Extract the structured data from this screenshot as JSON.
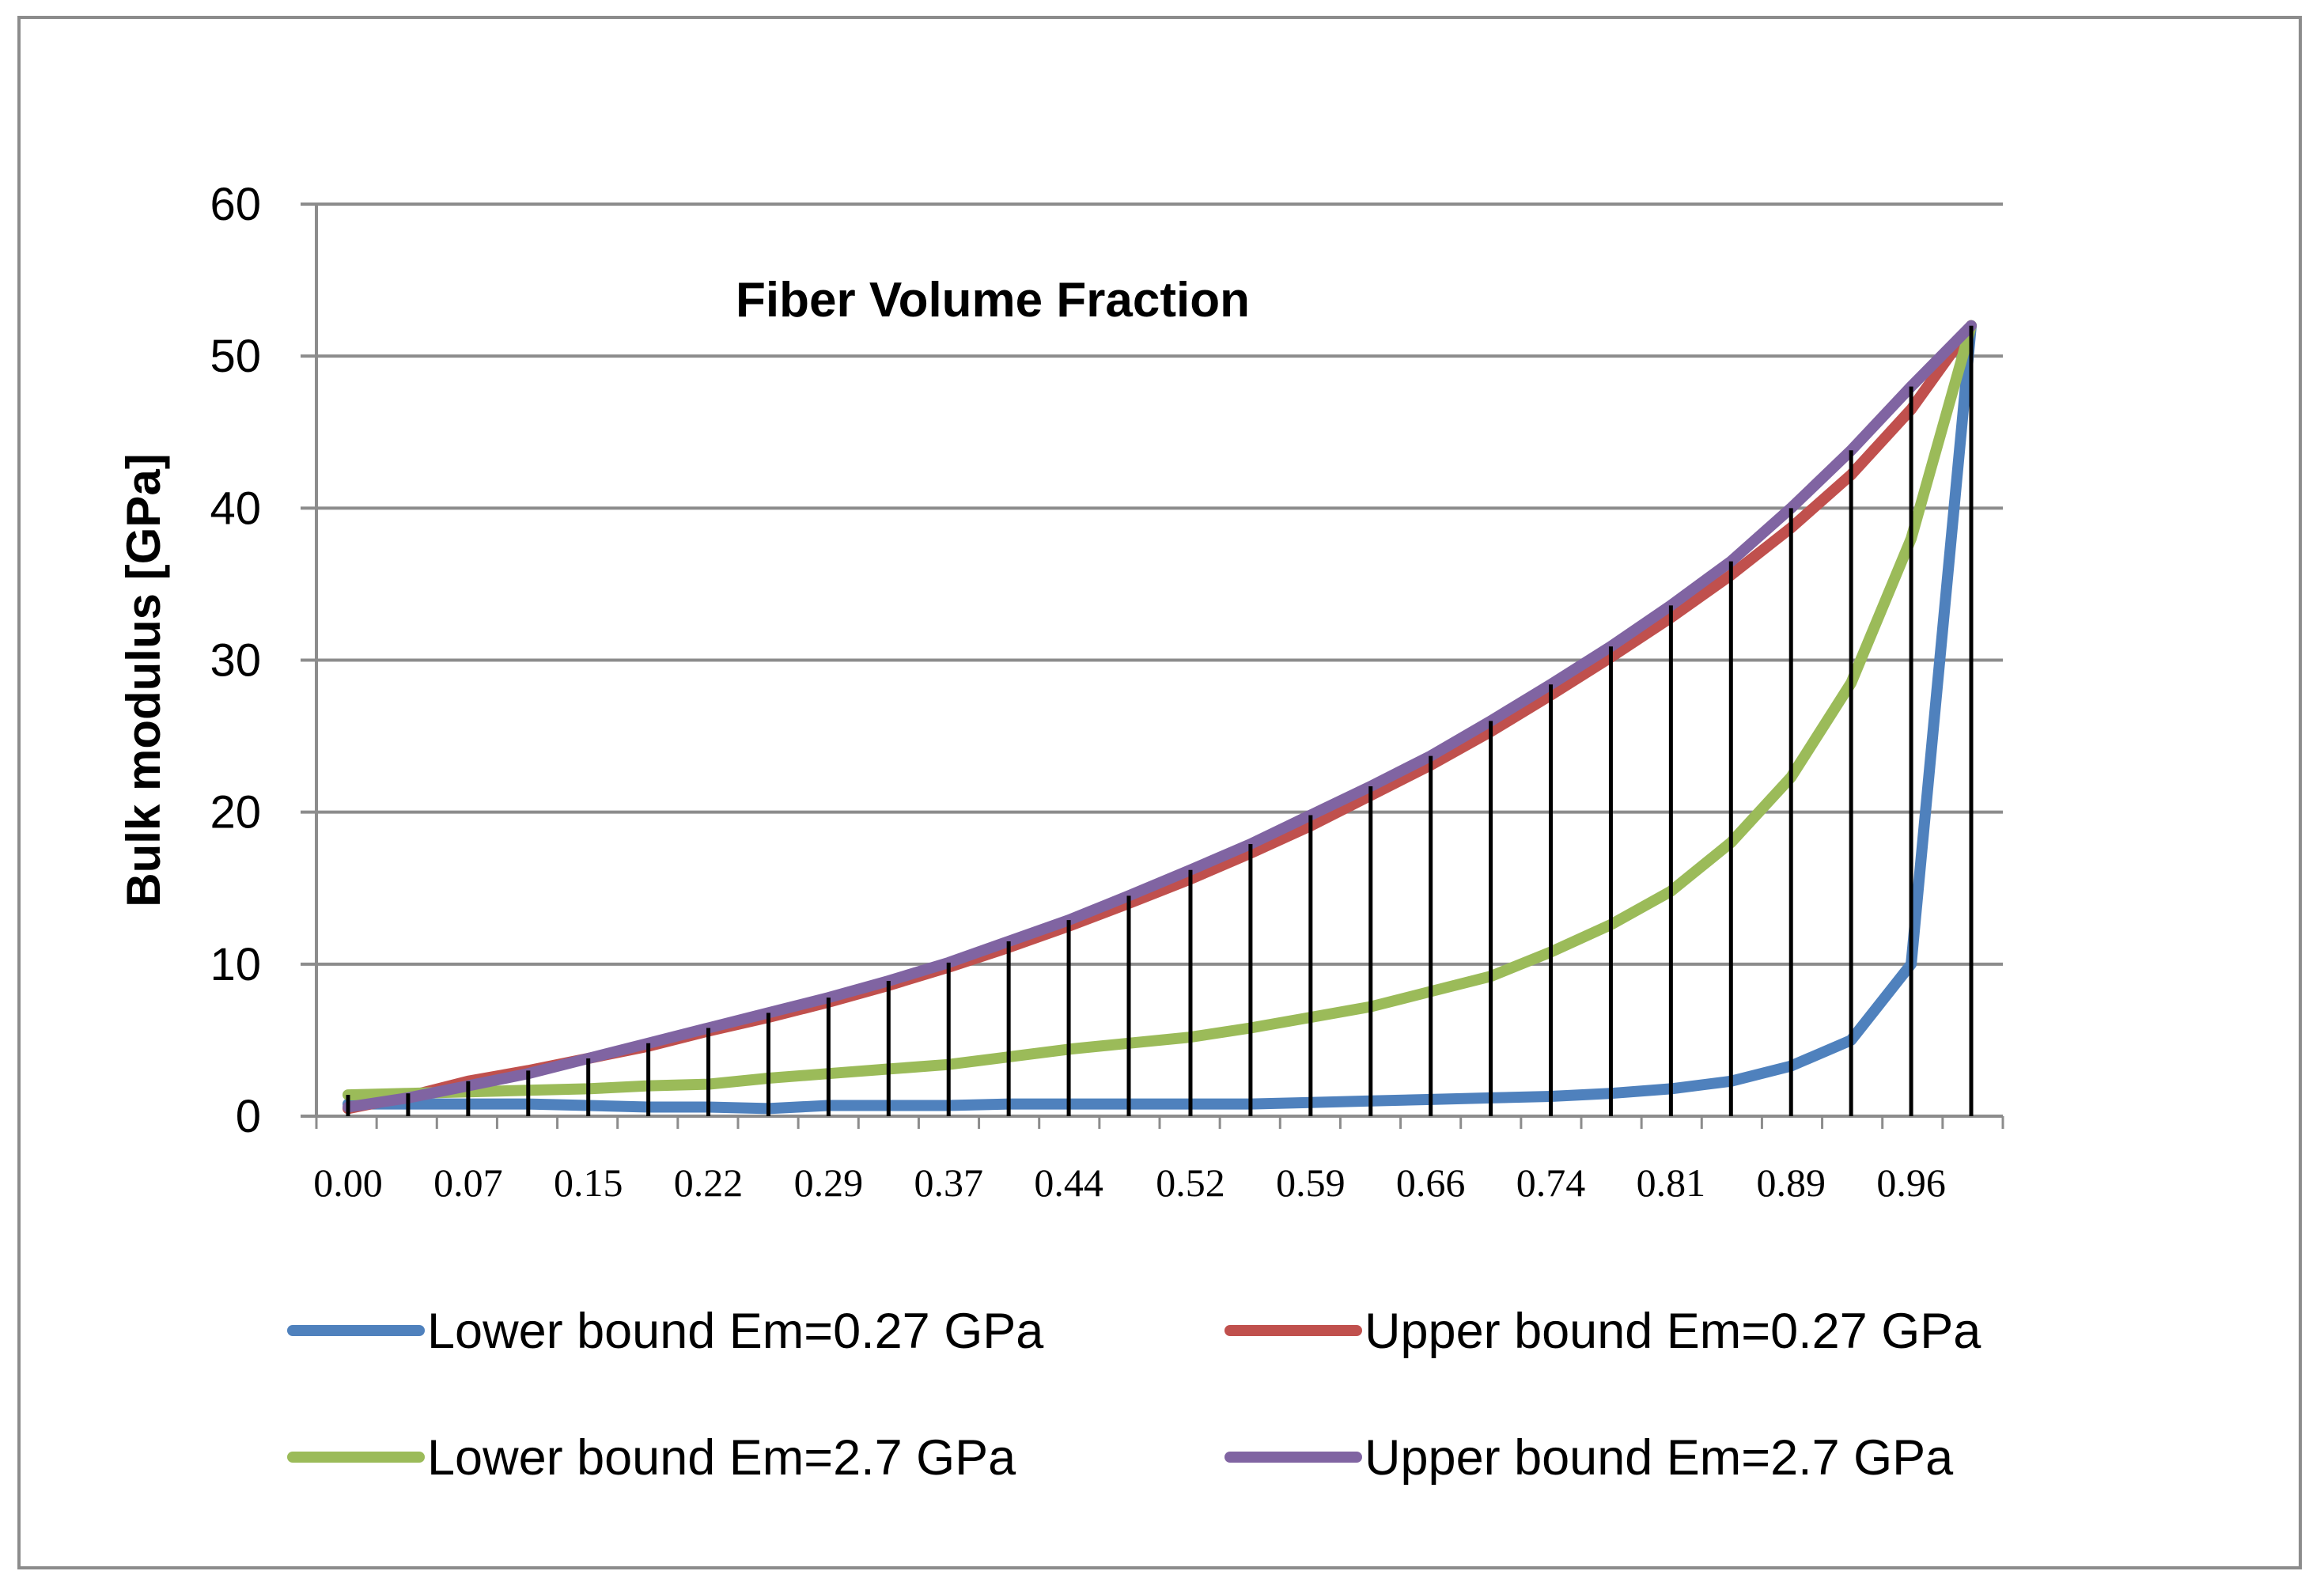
{
  "chart_data": {
    "type": "line",
    "title": "Fiber Volume Fraction",
    "xlabel": "",
    "ylabel": "Bulk modulus [GPa]",
    "ylim": [
      0,
      60
    ],
    "yticks": [
      "0",
      "10",
      "20",
      "30",
      "40",
      "50",
      "60"
    ],
    "xtick_labels": [
      "0.00",
      "0.07",
      "0.15",
      "0.22",
      "0.29",
      "0.37",
      "0.44",
      "0.52",
      "0.59",
      "0.66",
      "0.74",
      "0.81",
      "0.89",
      "0.96"
    ],
    "grid": true,
    "legend_position": "bottom",
    "x": [
      0.0,
      0.037,
      0.074,
      0.111,
      0.148,
      0.185,
      0.222,
      0.259,
      0.296,
      0.333,
      0.37,
      0.407,
      0.444,
      0.481,
      0.519,
      0.556,
      0.593,
      0.63,
      0.667,
      0.704,
      0.741,
      0.778,
      0.815,
      0.852,
      0.889,
      0.926,
      0.963,
      1.0
    ],
    "series": [
      {
        "name": "Lower bound Em=0.27 GPa",
        "color": "#4f81bd",
        "values": [
          0.8,
          0.8,
          0.8,
          0.8,
          0.7,
          0.6,
          0.6,
          0.5,
          0.7,
          0.7,
          0.7,
          0.8,
          0.8,
          0.8,
          0.8,
          0.8,
          0.9,
          1.0,
          1.1,
          1.2,
          1.3,
          1.5,
          1.8,
          2.3,
          3.3,
          5.0,
          10.0,
          52.0
        ]
      },
      {
        "name": "Upper bound Em=0.27 GPa",
        "color": "#c0504d",
        "values": [
          0.5,
          1.3,
          2.3,
          3.0,
          3.8,
          4.6,
          5.6,
          6.5,
          7.5,
          8.6,
          9.8,
          11.1,
          12.5,
          14.0,
          15.6,
          17.3,
          19.1,
          21.1,
          23.1,
          25.3,
          27.7,
          30.2,
          32.8,
          35.6,
          38.7,
          42.2,
          46.5,
          52.0
        ]
      },
      {
        "name": "Lower bound Em=2.7 GPa",
        "color": "#9bbb59",
        "values": [
          1.4,
          1.5,
          1.6,
          1.7,
          1.8,
          2.0,
          2.1,
          2.5,
          2.8,
          3.1,
          3.4,
          3.9,
          4.4,
          4.8,
          5.2,
          5.8,
          6.5,
          7.2,
          8.2,
          9.2,
          10.8,
          12.6,
          14.8,
          18.0,
          22.3,
          28.5,
          38.0,
          52.0
        ]
      },
      {
        "name": "Upper bound Em=2.7 GPa",
        "color": "#8064a2",
        "values": [
          0.6,
          1.2,
          2.0,
          2.8,
          3.8,
          4.8,
          5.8,
          6.8,
          7.8,
          8.9,
          10.1,
          11.5,
          12.9,
          14.5,
          16.2,
          17.9,
          19.8,
          21.7,
          23.7,
          26.0,
          28.4,
          30.9,
          33.6,
          36.5,
          40.0,
          43.8,
          48.0,
          52.0
        ]
      }
    ]
  }
}
